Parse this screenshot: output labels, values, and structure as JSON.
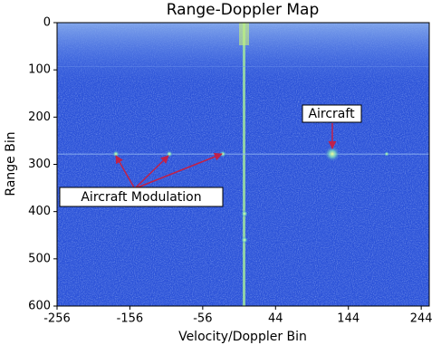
{
  "chart_data": {
    "type": "heatmap",
    "title": "Range-Doppler Map",
    "x_label": "Velocity/Doppler Bin",
    "y_label": "Range Bin",
    "xlim": [
      -256,
      255
    ],
    "xticks": [
      -256,
      -156,
      -56,
      44,
      144,
      244
    ],
    "ylim": [
      0,
      600
    ],
    "yticks": [
      0,
      100,
      200,
      300,
      400,
      500,
      600
    ],
    "invert_y": true,
    "annotations": [
      "Aircraft",
      "Aircraft Modulation"
    ]
  }
}
